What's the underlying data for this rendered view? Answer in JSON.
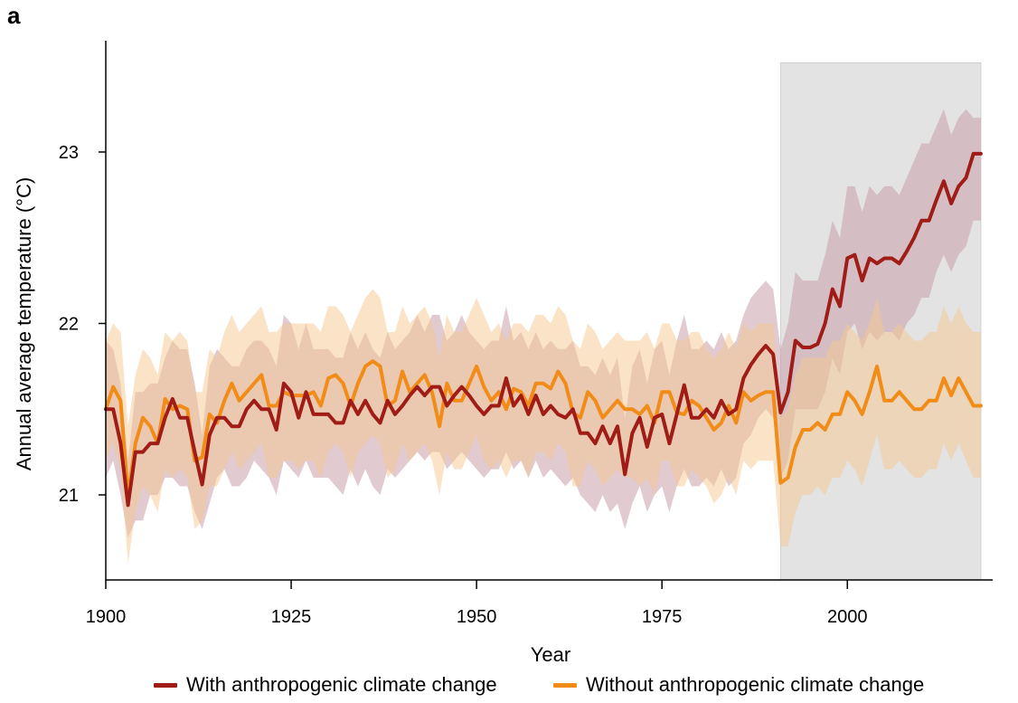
{
  "panel_label": "a",
  "chart_data": {
    "type": "line",
    "title": "",
    "xlabel": "Year",
    "ylabel": "Annual average temperature (°C)",
    "xlim": [
      1900,
      2020
    ],
    "ylim": [
      20.5,
      23.6
    ],
    "xticks": [
      1900,
      1925,
      1950,
      1975,
      2000
    ],
    "yticks": [
      21,
      22,
      23
    ],
    "grid": false,
    "legend_position": "bottom",
    "shaded_period": [
      1991,
      2018
    ],
    "shaded_color": "#e3e3e3",
    "x": [
      1900,
      1901,
      1902,
      1903,
      1904,
      1905,
      1906,
      1907,
      1908,
      1909,
      1910,
      1911,
      1912,
      1913,
      1914,
      1915,
      1916,
      1917,
      1918,
      1919,
      1920,
      1921,
      1922,
      1923,
      1924,
      1925,
      1926,
      1927,
      1928,
      1929,
      1930,
      1931,
      1932,
      1933,
      1934,
      1935,
      1936,
      1937,
      1938,
      1939,
      1940,
      1941,
      1942,
      1943,
      1944,
      1945,
      1946,
      1947,
      1948,
      1949,
      1950,
      1951,
      1952,
      1953,
      1954,
      1955,
      1956,
      1957,
      1958,
      1959,
      1960,
      1961,
      1962,
      1963,
      1964,
      1965,
      1966,
      1967,
      1968,
      1969,
      1970,
      1971,
      1972,
      1973,
      1974,
      1975,
      1976,
      1977,
      1978,
      1979,
      1980,
      1981,
      1982,
      1983,
      1984,
      1985,
      1986,
      1987,
      1988,
      1989,
      1990,
      1991,
      1992,
      1993,
      1994,
      1995,
      1996,
      1997,
      1998,
      1999,
      2000,
      2001,
      2002,
      2003,
      2004,
      2005,
      2006,
      2007,
      2008,
      2009,
      2010,
      2011,
      2012,
      2013,
      2014,
      2015,
      2016,
      2017,
      2018
    ],
    "series": [
      {
        "name": "With anthropogenic climate change",
        "color": "#a01c16",
        "band_color": "#c9a0aa",
        "values": [
          21.5,
          21.5,
          21.3,
          20.94,
          21.25,
          21.25,
          21.3,
          21.3,
          21.45,
          21.56,
          21.45,
          21.45,
          21.25,
          21.06,
          21.35,
          21.45,
          21.45,
          21.4,
          21.4,
          21.5,
          21.55,
          21.5,
          21.5,
          21.38,
          21.65,
          21.6,
          21.45,
          21.6,
          21.47,
          21.47,
          21.47,
          21.42,
          21.42,
          21.55,
          21.47,
          21.55,
          21.47,
          21.42,
          21.55,
          21.47,
          21.52,
          21.58,
          21.63,
          21.58,
          21.63,
          21.63,
          21.52,
          21.58,
          21.63,
          21.58,
          21.52,
          21.47,
          21.52,
          21.52,
          21.68,
          21.52,
          21.58,
          21.47,
          21.58,
          21.47,
          21.52,
          21.47,
          21.45,
          21.5,
          21.36,
          21.36,
          21.3,
          21.4,
          21.3,
          21.4,
          21.12,
          21.36,
          21.45,
          21.28,
          21.45,
          21.47,
          21.3,
          21.47,
          21.64,
          21.45,
          21.45,
          21.5,
          21.45,
          21.55,
          21.47,
          21.5,
          21.68,
          21.76,
          21.82,
          21.87,
          21.82,
          21.48,
          21.6,
          21.9,
          21.86,
          21.86,
          21.88,
          22.0,
          22.2,
          22.1,
          22.38,
          22.4,
          22.25,
          22.38,
          22.35,
          22.38,
          22.38,
          22.35,
          22.42,
          22.5,
          22.6,
          22.6,
          22.72,
          22.83,
          22.7,
          22.8,
          22.85,
          22.99,
          22.99
        ],
        "lower": [
          21.1,
          21.2,
          21.0,
          20.75,
          20.85,
          20.85,
          21.0,
          21.0,
          21.1,
          21.1,
          21.05,
          21.05,
          20.9,
          20.8,
          20.95,
          21.1,
          21.15,
          21.05,
          21.05,
          21.1,
          21.2,
          21.15,
          21.1,
          21.0,
          21.2,
          21.15,
          21.1,
          21.2,
          21.1,
          21.1,
          21.1,
          21.05,
          21.0,
          21.15,
          21.05,
          21.15,
          21.05,
          21.0,
          21.15,
          21.1,
          21.15,
          21.2,
          21.25,
          21.2,
          21.25,
          21.25,
          21.15,
          21.2,
          21.25,
          21.2,
          21.15,
          21.1,
          21.15,
          21.15,
          21.25,
          21.15,
          21.2,
          21.1,
          21.2,
          21.1,
          21.15,
          21.1,
          21.05,
          21.1,
          21.0,
          20.95,
          20.9,
          21.0,
          20.9,
          20.95,
          20.8,
          20.95,
          21.05,
          20.9,
          21.0,
          21.05,
          20.9,
          21.05,
          21.15,
          21.05,
          21.05,
          21.1,
          21.05,
          21.15,
          21.05,
          21.1,
          21.3,
          21.35,
          21.45,
          21.5,
          21.45,
          21.1,
          21.2,
          21.5,
          21.5,
          21.5,
          21.5,
          21.6,
          21.8,
          21.7,
          21.95,
          22.0,
          21.85,
          21.95,
          21.9,
          21.95,
          21.95,
          21.9,
          22.0,
          22.05,
          22.15,
          22.15,
          22.3,
          22.4,
          22.3,
          22.4,
          22.45,
          22.6,
          22.6
        ],
        "upper": [
          21.9,
          21.85,
          21.65,
          21.2,
          21.6,
          21.6,
          21.65,
          21.65,
          21.8,
          21.9,
          21.85,
          21.85,
          21.65,
          21.35,
          21.75,
          21.85,
          21.8,
          21.75,
          21.75,
          21.85,
          21.9,
          21.9,
          21.85,
          21.75,
          22.05,
          22.0,
          21.85,
          22.0,
          21.85,
          21.85,
          21.85,
          21.8,
          21.8,
          21.95,
          21.85,
          21.95,
          21.85,
          21.8,
          21.95,
          21.85,
          21.9,
          21.95,
          22.05,
          21.95,
          22.05,
          22.05,
          21.9,
          21.95,
          22.05,
          21.95,
          21.9,
          21.85,
          21.9,
          21.9,
          22.1,
          21.9,
          21.95,
          21.85,
          21.95,
          21.85,
          21.9,
          21.85,
          21.85,
          21.9,
          21.75,
          21.75,
          21.7,
          21.8,
          21.7,
          21.8,
          21.45,
          21.75,
          21.85,
          21.65,
          21.85,
          21.9,
          21.7,
          21.9,
          22.05,
          21.85,
          21.85,
          21.9,
          21.85,
          21.95,
          21.85,
          21.9,
          22.05,
          22.15,
          22.2,
          22.25,
          22.2,
          21.85,
          22.0,
          22.3,
          22.25,
          22.25,
          22.25,
          22.4,
          22.6,
          22.5,
          22.8,
          22.8,
          22.65,
          22.8,
          22.75,
          22.8,
          22.8,
          22.75,
          22.85,
          22.95,
          23.05,
          23.05,
          23.15,
          23.25,
          23.1,
          23.2,
          23.25,
          23.2,
          23.2
        ]
      },
      {
        "name": "Without anthropogenic climate change",
        "color": "#f28c18",
        "band_color": "#f6c790",
        "values": [
          21.5,
          21.63,
          21.55,
          20.99,
          21.3,
          21.45,
          21.4,
          21.3,
          21.56,
          21.5,
          21.52,
          21.5,
          21.2,
          21.22,
          21.47,
          21.42,
          21.55,
          21.65,
          21.55,
          21.6,
          21.65,
          21.7,
          21.52,
          21.52,
          21.6,
          21.58,
          21.58,
          21.58,
          21.6,
          21.52,
          21.68,
          21.7,
          21.65,
          21.52,
          21.65,
          21.75,
          21.78,
          21.75,
          21.52,
          21.55,
          21.72,
          21.6,
          21.65,
          21.7,
          21.6,
          21.4,
          21.65,
          21.55,
          21.55,
          21.65,
          21.75,
          21.63,
          21.55,
          21.6,
          21.5,
          21.62,
          21.6,
          21.52,
          21.65,
          21.65,
          21.62,
          21.72,
          21.65,
          21.48,
          21.45,
          21.6,
          21.55,
          21.45,
          21.5,
          21.55,
          21.5,
          21.5,
          21.47,
          21.52,
          21.42,
          21.6,
          21.6,
          21.48,
          21.47,
          21.55,
          21.52,
          21.45,
          21.38,
          21.42,
          21.52,
          21.42,
          21.6,
          21.55,
          21.58,
          21.6,
          21.6,
          21.07,
          21.1,
          21.28,
          21.38,
          21.38,
          21.42,
          21.38,
          21.47,
          21.47,
          21.6,
          21.55,
          21.47,
          21.6,
          21.75,
          21.55,
          21.55,
          21.6,
          21.55,
          21.5,
          21.5,
          21.55,
          21.55,
          21.68,
          21.58,
          21.68,
          21.6,
          21.52,
          21.52
        ],
        "lower": [
          21.2,
          21.3,
          21.15,
          20.6,
          20.9,
          21.05,
          21.0,
          20.9,
          21.15,
          21.1,
          21.15,
          21.1,
          20.8,
          20.85,
          21.05,
          21.05,
          21.15,
          21.25,
          21.15,
          21.2,
          21.25,
          21.3,
          21.1,
          21.1,
          21.2,
          21.2,
          21.15,
          21.2,
          21.2,
          21.1,
          21.25,
          21.3,
          21.25,
          21.1,
          21.25,
          21.3,
          21.35,
          21.3,
          21.1,
          21.15,
          21.3,
          21.2,
          21.25,
          21.3,
          21.2,
          21.0,
          21.25,
          21.15,
          21.15,
          21.25,
          21.35,
          21.2,
          21.15,
          21.2,
          21.1,
          21.2,
          21.2,
          21.1,
          21.25,
          21.25,
          21.2,
          21.3,
          21.25,
          21.05,
          21.05,
          21.2,
          21.15,
          21.05,
          21.1,
          21.15,
          21.1,
          21.1,
          21.05,
          21.1,
          21.0,
          21.2,
          21.2,
          21.05,
          21.05,
          21.15,
          21.1,
          21.05,
          20.95,
          21.0,
          21.1,
          21.0,
          21.2,
          21.15,
          21.2,
          21.2,
          21.2,
          20.7,
          20.7,
          20.9,
          21.0,
          21.0,
          21.05,
          21.0,
          21.1,
          21.1,
          21.2,
          21.15,
          21.05,
          21.2,
          21.35,
          21.15,
          21.15,
          21.2,
          21.15,
          21.1,
          21.1,
          21.15,
          21.15,
          21.3,
          21.2,
          21.3,
          21.2,
          21.1,
          21.1
        ],
        "upper": [
          21.9,
          22.0,
          21.95,
          21.4,
          21.7,
          21.85,
          21.8,
          21.7,
          21.95,
          21.9,
          21.95,
          21.9,
          21.6,
          21.6,
          21.85,
          21.8,
          21.95,
          22.05,
          21.95,
          22.0,
          22.05,
          22.1,
          21.95,
          21.95,
          22.0,
          22.0,
          22.0,
          22.0,
          22.0,
          21.95,
          22.1,
          22.1,
          22.05,
          21.95,
          22.05,
          22.15,
          22.2,
          22.15,
          21.95,
          21.95,
          22.1,
          22.0,
          22.05,
          22.1,
          22.0,
          21.8,
          22.05,
          21.95,
          21.95,
          22.05,
          22.15,
          22.05,
          21.95,
          22.0,
          21.9,
          22.0,
          22.0,
          21.95,
          22.05,
          22.05,
          22.0,
          22.1,
          22.05,
          21.9,
          21.85,
          22.0,
          21.95,
          21.85,
          21.9,
          21.95,
          21.9,
          21.9,
          21.9,
          21.95,
          21.85,
          22.0,
          22.0,
          21.9,
          21.9,
          21.95,
          21.95,
          21.85,
          21.8,
          21.85,
          21.95,
          21.85,
          22.0,
          21.95,
          22.0,
          22.0,
          22.0,
          21.45,
          21.5,
          21.7,
          21.8,
          21.8,
          21.8,
          21.8,
          21.9,
          21.9,
          22.0,
          21.95,
          21.9,
          22.0,
          22.15,
          21.95,
          21.95,
          22.0,
          21.95,
          21.9,
          21.9,
          21.95,
          21.95,
          22.1,
          22.0,
          22.1,
          22.0,
          21.95,
          21.95
        ]
      }
    ]
  }
}
